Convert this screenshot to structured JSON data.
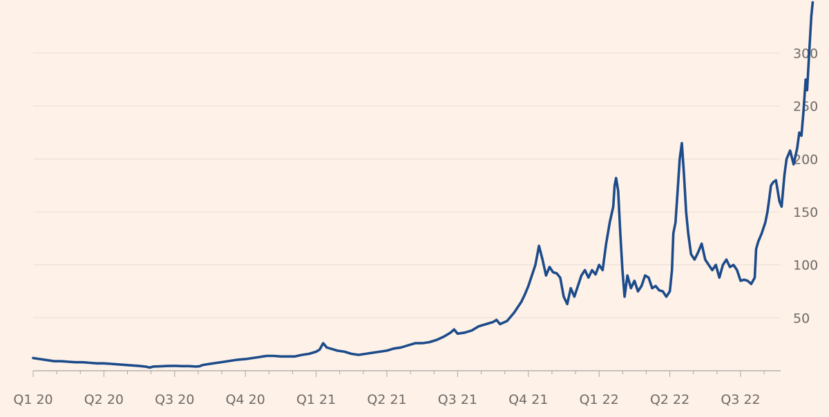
{
  "chart_data": {
    "type": "line",
    "title": "",
    "xlabel": "",
    "ylabel": "",
    "ylim": [
      0,
      345
    ],
    "grid": true,
    "y_axis_position": "right",
    "y_ticks": [
      50,
      100,
      150,
      200,
      250,
      300
    ],
    "x_ticks": [
      {
        "q": 0,
        "label": "Q1 20"
      },
      {
        "q": 1,
        "label": "Q2 20"
      },
      {
        "q": 2,
        "label": "Q3 20"
      },
      {
        "q": 3,
        "label": "Q4 20"
      },
      {
        "q": 4,
        "label": "Q1 21"
      },
      {
        "q": 5,
        "label": "Q2 21"
      },
      {
        "q": 6,
        "label": "Q3 21"
      },
      {
        "q": 7,
        "label": "Q4 21"
      },
      {
        "q": 8,
        "label": "Q1 22"
      },
      {
        "q": 9,
        "label": "Q2 22"
      },
      {
        "q": 10,
        "label": "Q3 22"
      }
    ],
    "x_range": [
      0,
      10.65
    ],
    "colors": {
      "line": "#1c4b8a",
      "background": "#fdf1e8",
      "grid": "#e9ddd4"
    },
    "series": [
      {
        "points": [
          [
            0.0,
            12
          ],
          [
            0.1,
            11
          ],
          [
            0.2,
            10
          ],
          [
            0.3,
            9
          ],
          [
            0.4,
            9
          ],
          [
            0.5,
            8.5
          ],
          [
            0.6,
            8
          ],
          [
            0.7,
            8
          ],
          [
            0.8,
            7.5
          ],
          [
            0.9,
            7
          ],
          [
            1.0,
            7
          ],
          [
            1.1,
            6.5
          ],
          [
            1.2,
            6
          ],
          [
            1.3,
            5.5
          ],
          [
            1.4,
            5
          ],
          [
            1.5,
            4.5
          ],
          [
            1.6,
            3.8
          ],
          [
            1.65,
            3
          ],
          [
            1.7,
            4
          ],
          [
            1.8,
            4.2
          ],
          [
            1.9,
            4.5
          ],
          [
            2.0,
            4.6
          ],
          [
            2.1,
            4.4
          ],
          [
            2.2,
            4.4
          ],
          [
            2.3,
            4
          ],
          [
            2.35,
            4.2
          ],
          [
            2.4,
            5.5
          ],
          [
            2.5,
            6.5
          ],
          [
            2.6,
            7.5
          ],
          [
            2.7,
            8.5
          ],
          [
            2.8,
            9.5
          ],
          [
            2.9,
            10.5
          ],
          [
            3.0,
            11
          ],
          [
            3.1,
            12
          ],
          [
            3.2,
            13
          ],
          [
            3.3,
            14
          ],
          [
            3.4,
            14
          ],
          [
            3.5,
            13.5
          ],
          [
            3.6,
            13.5
          ],
          [
            3.7,
            13.5
          ],
          [
            3.8,
            15
          ],
          [
            3.9,
            16
          ],
          [
            4.0,
            18
          ],
          [
            4.05,
            20
          ],
          [
            4.1,
            26
          ],
          [
            4.15,
            22
          ],
          [
            4.2,
            21
          ],
          [
            4.3,
            19
          ],
          [
            4.4,
            18
          ],
          [
            4.5,
            16
          ],
          [
            4.6,
            15
          ],
          [
            4.7,
            16
          ],
          [
            4.8,
            17
          ],
          [
            4.9,
            18
          ],
          [
            5.0,
            19
          ],
          [
            5.1,
            21
          ],
          [
            5.2,
            22
          ],
          [
            5.3,
            24
          ],
          [
            5.4,
            26
          ],
          [
            5.5,
            26
          ],
          [
            5.6,
            27
          ],
          [
            5.7,
            29
          ],
          [
            5.8,
            32
          ],
          [
            5.9,
            36
          ],
          [
            5.95,
            39
          ],
          [
            6.0,
            35
          ],
          [
            6.1,
            36
          ],
          [
            6.2,
            38
          ],
          [
            6.3,
            42
          ],
          [
            6.4,
            44
          ],
          [
            6.5,
            46
          ],
          [
            6.55,
            48
          ],
          [
            6.6,
            44
          ],
          [
            6.7,
            47
          ],
          [
            6.8,
            55
          ],
          [
            6.85,
            60
          ],
          [
            6.9,
            65
          ],
          [
            6.95,
            72
          ],
          [
            7.0,
            80
          ],
          [
            7.05,
            90
          ],
          [
            7.1,
            100
          ],
          [
            7.15,
            118
          ],
          [
            7.2,
            105
          ],
          [
            7.25,
            90
          ],
          [
            7.3,
            98
          ],
          [
            7.35,
            93
          ],
          [
            7.4,
            92
          ],
          [
            7.45,
            88
          ],
          [
            7.5,
            70
          ],
          [
            7.55,
            63
          ],
          [
            7.6,
            78
          ],
          [
            7.65,
            70
          ],
          [
            7.7,
            80
          ],
          [
            7.75,
            90
          ],
          [
            7.8,
            95
          ],
          [
            7.85,
            88
          ],
          [
            7.9,
            95
          ],
          [
            7.95,
            91
          ],
          [
            8.0,
            100
          ],
          [
            8.05,
            95
          ],
          [
            8.1,
            120
          ],
          [
            8.15,
            140
          ],
          [
            8.2,
            155
          ],
          [
            8.22,
            175
          ],
          [
            8.24,
            182
          ],
          [
            8.27,
            170
          ],
          [
            8.3,
            130
          ],
          [
            8.33,
            95
          ],
          [
            8.36,
            70
          ],
          [
            8.4,
            90
          ],
          [
            8.45,
            78
          ],
          [
            8.5,
            85
          ],
          [
            8.55,
            75
          ],
          [
            8.6,
            80
          ],
          [
            8.65,
            90
          ],
          [
            8.7,
            88
          ],
          [
            8.75,
            78
          ],
          [
            8.8,
            80
          ],
          [
            8.85,
            76
          ],
          [
            8.9,
            75
          ],
          [
            8.95,
            70
          ],
          [
            9.0,
            75
          ],
          [
            9.03,
            95
          ],
          [
            9.05,
            130
          ],
          [
            9.08,
            140
          ],
          [
            9.11,
            170
          ],
          [
            9.14,
            200
          ],
          [
            9.17,
            215
          ],
          [
            9.2,
            185
          ],
          [
            9.23,
            150
          ],
          [
            9.26,
            130
          ],
          [
            9.3,
            110
          ],
          [
            9.35,
            105
          ],
          [
            9.4,
            112
          ],
          [
            9.45,
            120
          ],
          [
            9.5,
            105
          ],
          [
            9.55,
            100
          ],
          [
            9.6,
            95
          ],
          [
            9.65,
            100
          ],
          [
            9.7,
            88
          ],
          [
            9.75,
            100
          ],
          [
            9.8,
            105
          ],
          [
            9.85,
            98
          ],
          [
            9.9,
            100
          ],
          [
            9.95,
            95
          ],
          [
            10.0,
            85
          ],
          [
            10.05,
            86
          ],
          [
            10.1,
            85
          ],
          [
            10.15,
            82
          ],
          [
            10.2,
            88
          ],
          [
            10.22,
            115
          ],
          [
            10.25,
            122
          ],
          [
            10.3,
            130
          ],
          [
            10.35,
            140
          ],
          [
            10.38,
            150
          ],
          [
            10.4,
            160
          ],
          [
            10.43,
            175
          ],
          [
            10.46,
            178
          ],
          [
            10.5,
            180
          ],
          [
            10.55,
            160
          ],
          [
            10.58,
            155
          ],
          [
            10.62,
            185
          ],
          [
            10.65,
            200
          ],
          [
            10.7,
            208
          ],
          [
            10.75,
            195
          ],
          [
            10.8,
            210
          ],
          [
            10.83,
            225
          ],
          [
            10.86,
            222
          ],
          [
            10.89,
            245
          ],
          [
            10.92,
            275
          ],
          [
            10.94,
            265
          ],
          [
            10.97,
            300
          ],
          [
            11.0,
            335
          ],
          [
            11.02,
            348
          ]
        ]
      }
    ]
  }
}
